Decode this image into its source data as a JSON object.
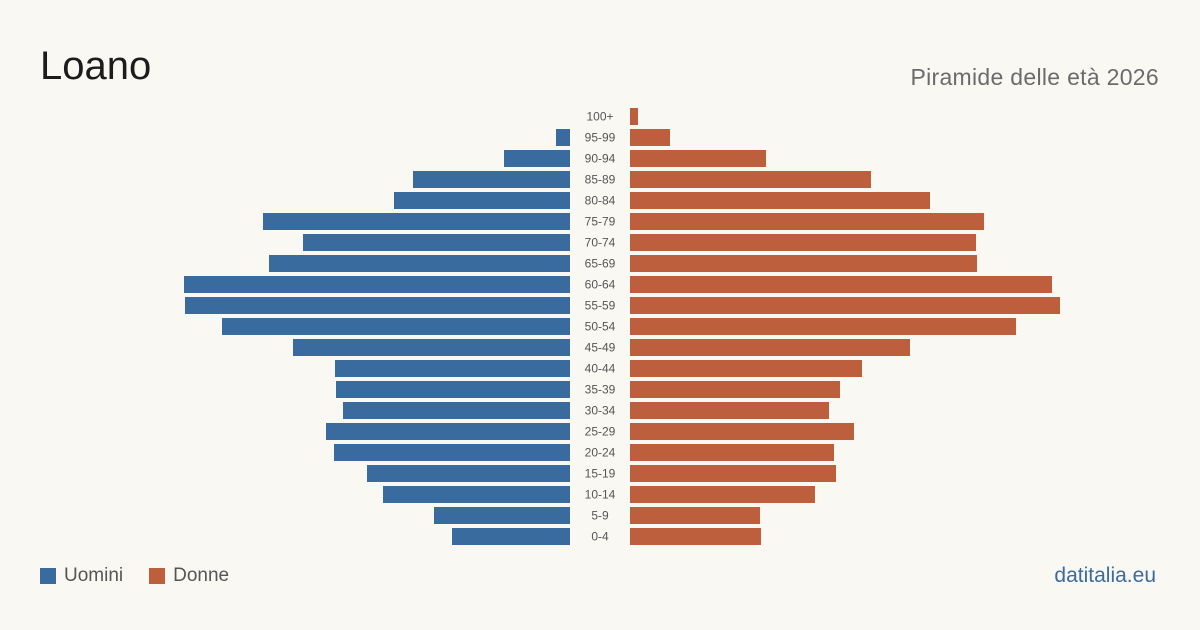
{
  "header": {
    "title": "Loano",
    "subtitle": "Piramide delle età 2026"
  },
  "legend": {
    "male_label": "Uomini",
    "female_label": "Donne"
  },
  "footer": {
    "source": "datitalia.eu"
  },
  "colors": {
    "male": "#3a6b9e",
    "female": "#bd5e3c"
  },
  "chart_data": {
    "type": "bar",
    "orientation": "horizontal",
    "title": "Loano",
    "subtitle": "Piramide delle età 2026",
    "categories": [
      "100+",
      "95-99",
      "90-94",
      "85-89",
      "80-84",
      "75-79",
      "70-74",
      "65-69",
      "60-64",
      "55-59",
      "50-54",
      "45-49",
      "40-44",
      "35-39",
      "30-34",
      "25-29",
      "20-24",
      "15-19",
      "10-14",
      "5-9",
      "0-4"
    ],
    "series": [
      {
        "name": "Uomini",
        "values": [
          0,
          14,
          66,
          157,
          176,
          307,
          267,
          301,
          386,
          385,
          348,
          277,
          235,
          234,
          227,
          244,
          236,
          203,
          187,
          136,
          118
        ]
      },
      {
        "name": "Donne",
        "values": [
          8,
          40,
          136,
          241,
          300,
          354,
          346,
          347,
          422,
          430,
          386,
          280,
          232,
          210,
          199,
          224,
          204,
          206,
          185,
          130,
          131
        ]
      }
    ],
    "xlim": [
      0,
      430
    ],
    "grid": false,
    "legend_position": "bottom-left"
  }
}
